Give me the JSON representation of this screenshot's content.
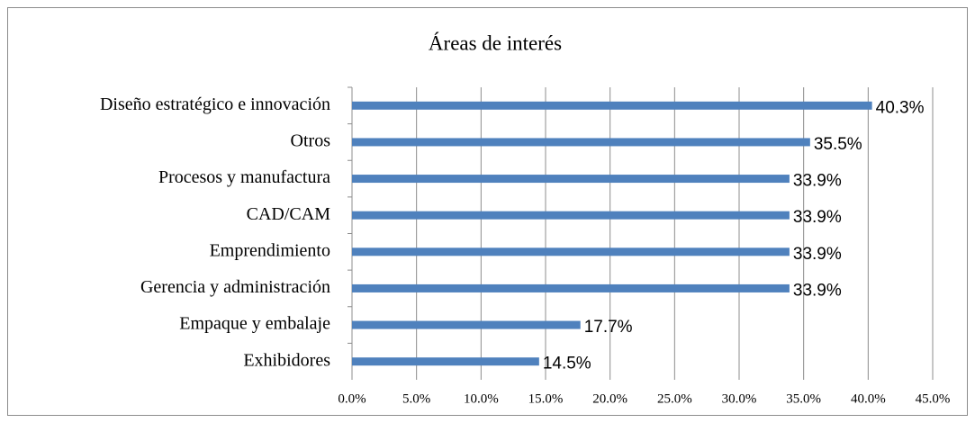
{
  "chart_data": {
    "type": "bar",
    "orientation": "horizontal",
    "title": "Áreas de interés",
    "categories": [
      "Diseño estratégico e innovación",
      "Otros",
      "Procesos y manufactura",
      "CAD/CAM",
      "Emprendimiento",
      "Gerencia y administración",
      "Empaque y embalaje",
      "Exhibidores"
    ],
    "values": [
      40.3,
      35.5,
      33.9,
      33.9,
      33.9,
      33.9,
      17.7,
      14.5
    ],
    "value_labels": [
      "40.3%",
      "35.5%",
      "33.9%",
      "33.9%",
      "33.9%",
      "33.9%",
      "17.7%",
      "14.5%"
    ],
    "color": "#4f81bd",
    "xlim": [
      0,
      45
    ],
    "xticks": [
      {
        "value": 0,
        "label": "0.0%"
      },
      {
        "value": 5,
        "label": "5.0%"
      },
      {
        "value": 10,
        "label": "10.0%"
      },
      {
        "value": 15,
        "label": "15.0%"
      },
      {
        "value": 20,
        "label": "20.0%"
      },
      {
        "value": 25,
        "label": "25.0%"
      },
      {
        "value": 30,
        "label": "30.0%"
      },
      {
        "value": 35,
        "label": "35.0%"
      },
      {
        "value": 40,
        "label": "40.0%"
      },
      {
        "value": 45,
        "label": "45.0%"
      }
    ],
    "grid": true
  }
}
